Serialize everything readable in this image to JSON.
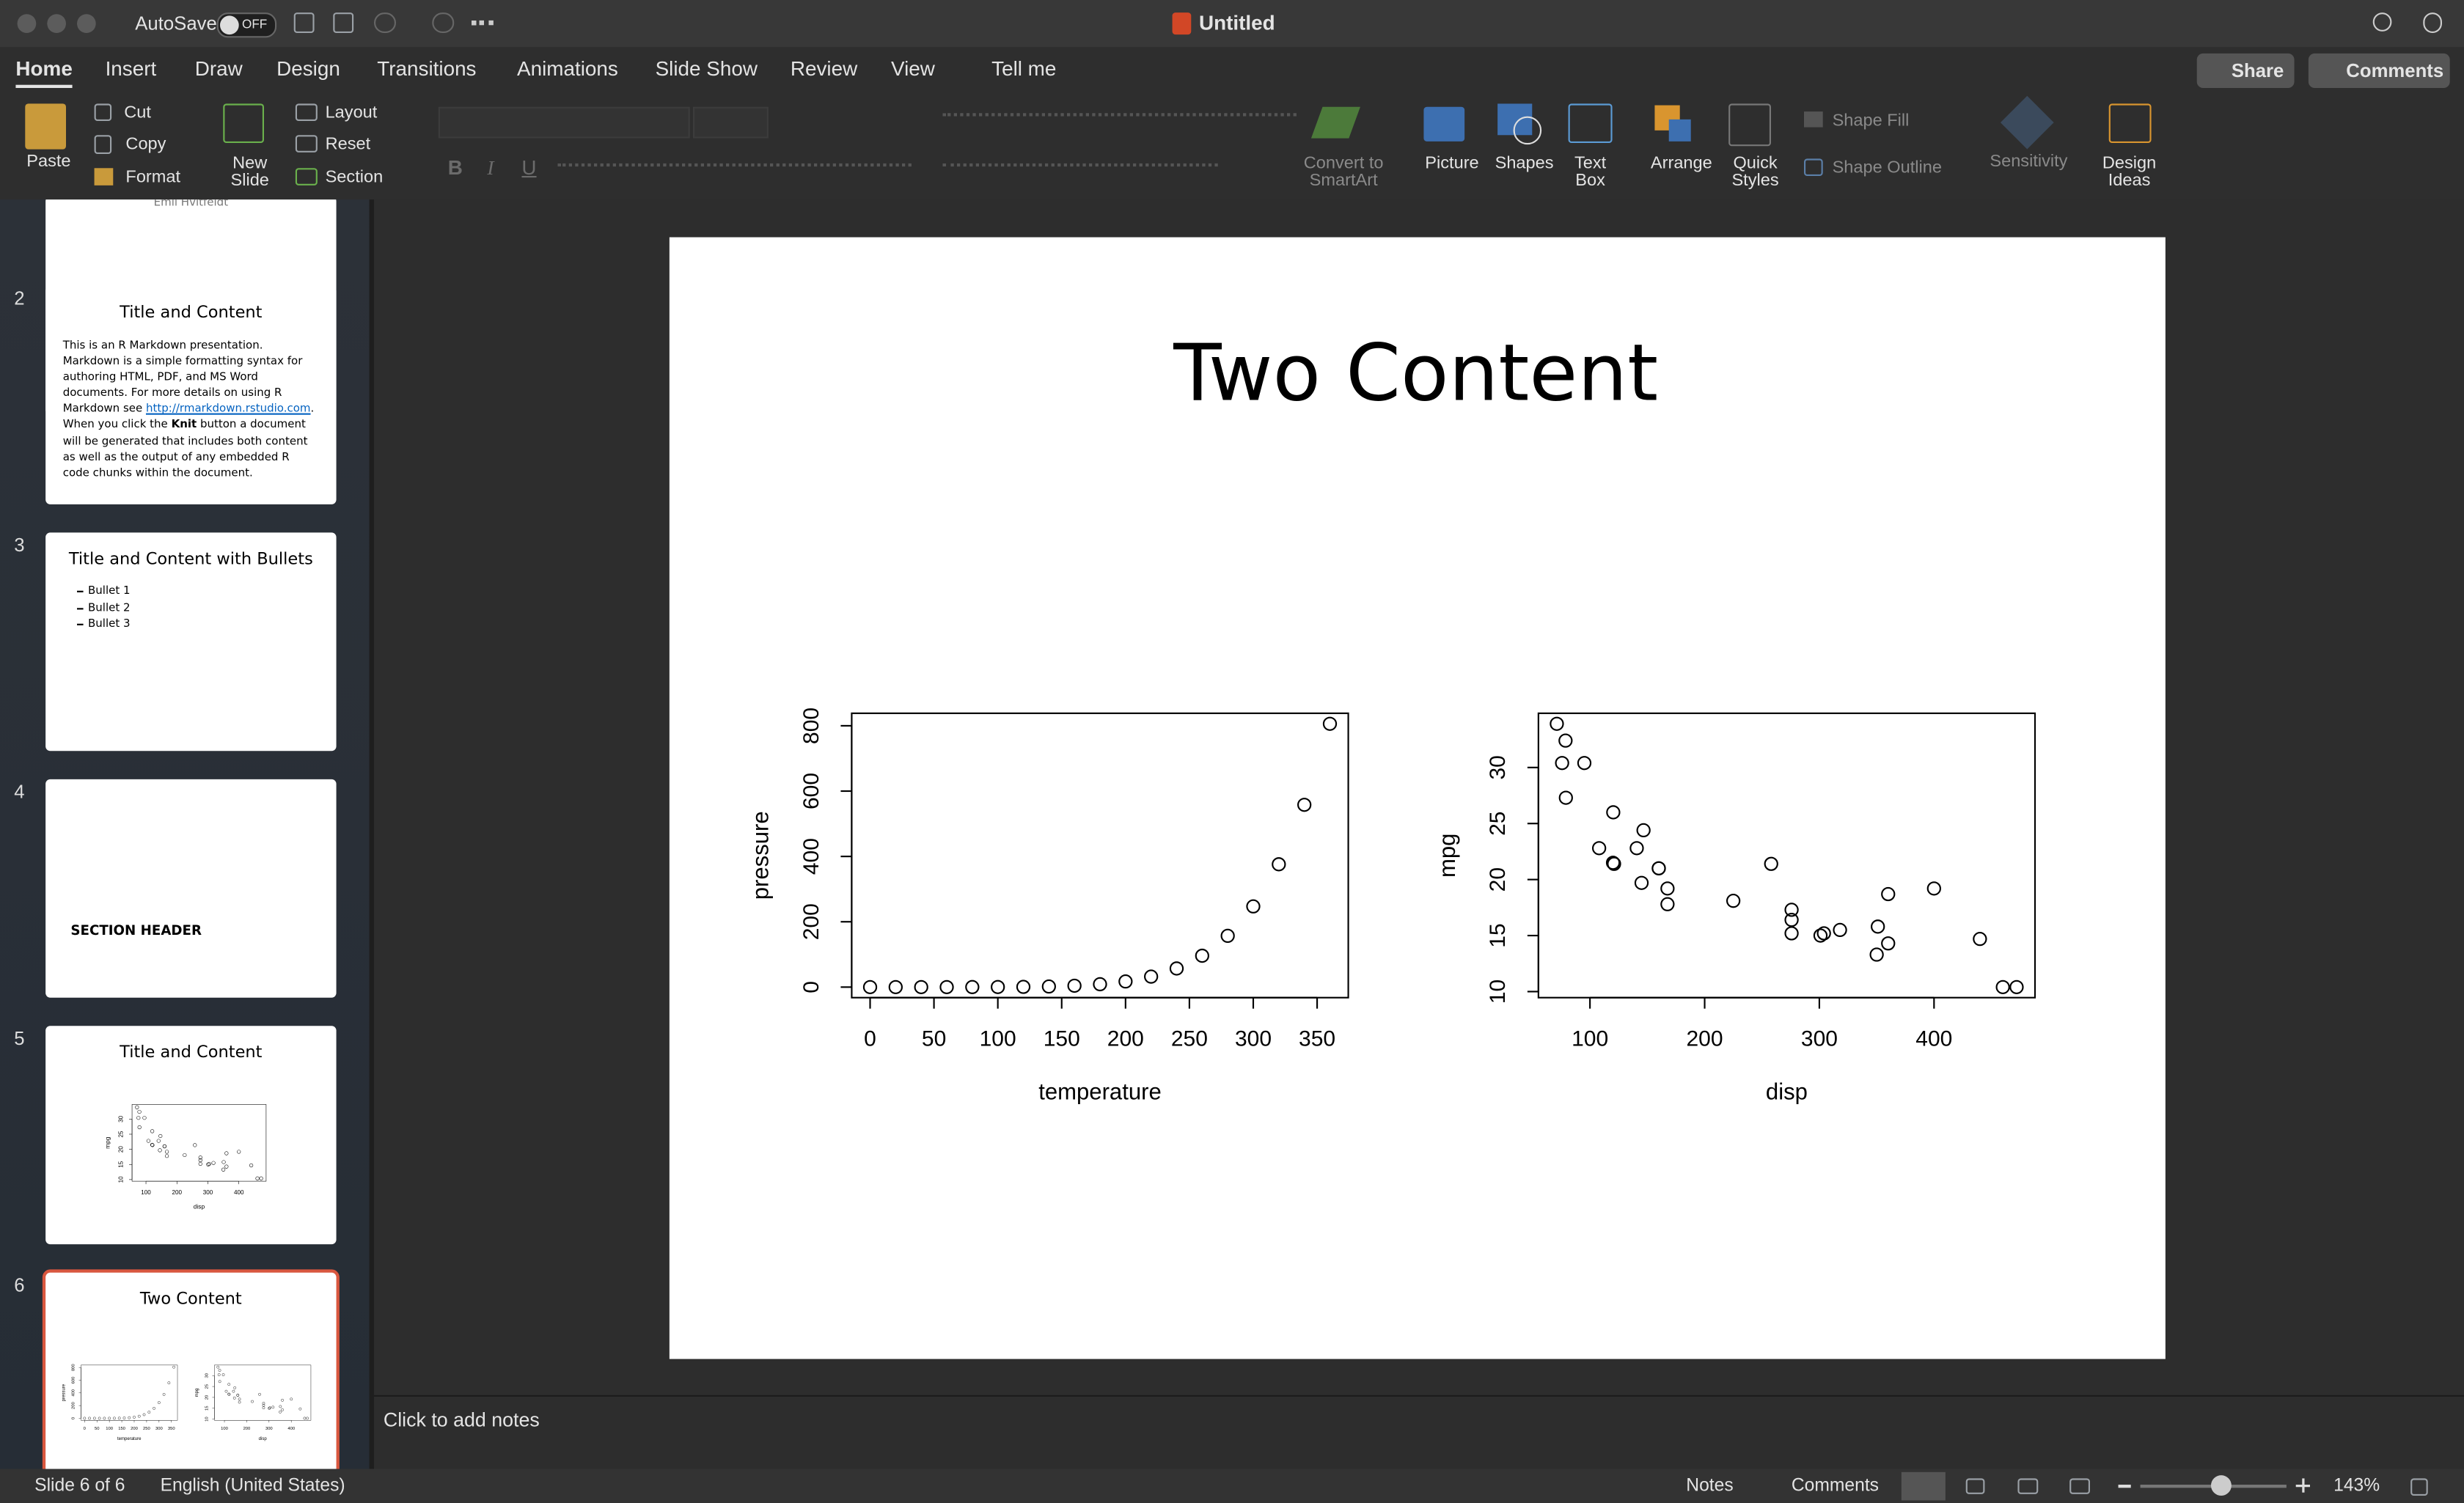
{
  "window": {
    "autosave": "AutoSave",
    "toggle": "OFF",
    "title": "Untitled"
  },
  "tabs": [
    "Home",
    "Insert",
    "Draw",
    "Design",
    "Transitions",
    "Animations",
    "Slide Show",
    "Review",
    "View",
    "Tell me"
  ],
  "share": "Share",
  "comments": "Comments",
  "ribbon": {
    "paste": "Paste",
    "cut": "Cut",
    "copy": "Copy",
    "format": "Format",
    "new_slide": "New Slide",
    "layout": "Layout",
    "reset": "Reset",
    "section": "Section",
    "font_buttons": [
      "B",
      "I",
      "U"
    ],
    "smartart": "Convert to SmartArt",
    "picture": "Picture",
    "shapes": "Shapes",
    "text_box": "Text Box",
    "arrange": "Arrange",
    "quick_styles": "Quick Styles",
    "shape_fill": "Shape Fill",
    "shape_outline": "Shape Outline",
    "sensitivity": "Sensitivity",
    "design_ideas": "Design Ideas"
  },
  "slides": [
    {
      "author": "Emil Hvitfeldt"
    },
    {
      "number": 2,
      "title": "Title and Content",
      "p1": "This is an R Markdown presentation. Markdown is a simple formatting syntax for authoring HTML, PDF, and MS Word documents. For more details on using R Markdown see ",
      "link": "http://rmarkdown.rstudio.com",
      "p1_end": ".",
      "p2_start": "When you click the ",
      "p2_bold": "Knit",
      "p2_end": " button a document will be generated that includes both content as well as the output of any embedded R code chunks within the document."
    },
    {
      "number": 3,
      "title": "Title and Content with Bullets",
      "bullets": [
        "Bullet 1",
        "Bullet 2",
        "Bullet 3"
      ]
    },
    {
      "number": 4,
      "title": "SECTION HEADER"
    },
    {
      "number": 5,
      "title": "Title and Content"
    },
    {
      "number": 6,
      "title": "Two Content"
    }
  ],
  "slide": {
    "title": "Two Content"
  },
  "notes": "Click to add notes",
  "status": {
    "slide": "Slide 6 of 6",
    "language": "English (United States)",
    "notes": "Notes",
    "comments": "Comments",
    "zoom": "143%"
  },
  "chart_data": [
    {
      "type": "scatter",
      "x_label": "temperature",
      "y_label": "pressure",
      "x": [
        0,
        20,
        40,
        60,
        80,
        100,
        120,
        140,
        160,
        180,
        200,
        220,
        240,
        260,
        280,
        300,
        320,
        340,
        360
      ],
      "values": [
        0.0002,
        0.0012,
        0.006,
        0.03,
        0.09,
        0.27,
        0.75,
        1.85,
        4.2,
        8.8,
        17.3,
        32.1,
        57,
        96,
        157,
        247,
        376,
        558,
        806
      ],
      "xlim": [
        -14.4,
        374.4
      ],
      "ylim": [
        -32.24,
        838.24
      ],
      "xticks": [
        0,
        50,
        100,
        150,
        200,
        250,
        300,
        350
      ],
      "yticks": [
        0,
        200,
        400,
        600,
        800
      ],
      "color": "#000000"
    },
    {
      "type": "scatter",
      "x_label": "disp",
      "y_label": "mpg",
      "x": [
        160,
        160,
        108,
        258,
        360,
        225,
        360,
        146.7,
        140.8,
        167.6,
        167.6,
        275.8,
        275.8,
        275.8,
        472,
        460,
        440,
        78.7,
        75.7,
        71.1,
        120.1,
        318,
        304,
        350,
        400,
        79,
        120.3,
        95.1,
        351,
        145,
        301,
        121
      ],
      "values": [
        21,
        21,
        22.8,
        21.4,
        18.7,
        18.1,
        14.3,
        24.4,
        22.8,
        19.2,
        17.8,
        16.4,
        17.3,
        15.2,
        10.4,
        10.4,
        14.7,
        32.4,
        30.4,
        33.9,
        21.5,
        15.5,
        15.2,
        13.3,
        19.2,
        27.3,
        26,
        30.4,
        15.8,
        19.7,
        15,
        21.4
      ],
      "xlim": [
        55.064,
        488.036
      ],
      "ylim": [
        9.46,
        34.84
      ],
      "xticks": [
        100,
        200,
        300,
        400
      ],
      "yticks": [
        10,
        15,
        20,
        25,
        30
      ],
      "color": "#000000"
    }
  ]
}
